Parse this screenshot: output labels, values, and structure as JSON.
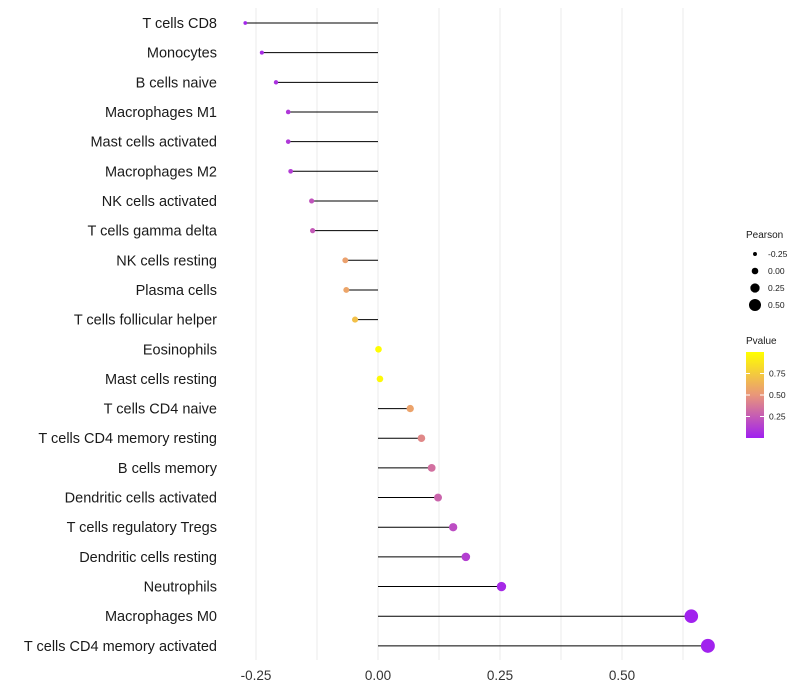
{
  "chart_data": {
    "type": "lollipop",
    "title": "",
    "xlabel": "",
    "ylabel": "",
    "xlim": [
      -0.275,
      0.69
    ],
    "x_ticks": [
      {
        "value": -0.25,
        "label": "-0.25"
      },
      {
        "value": 0.0,
        "label": "0.00"
      },
      {
        "value": 0.25,
        "label": "0.25"
      },
      {
        "value": 0.5,
        "label": "0.50"
      }
    ],
    "grid": true,
    "points": [
      {
        "category": "T cells CD8",
        "pearson": -0.272,
        "pvalue": 0.03
      },
      {
        "category": "Monocytes",
        "pearson": -0.238,
        "pvalue": 0.05
      },
      {
        "category": "B cells naive",
        "pearson": -0.209,
        "pvalue": 0.07
      },
      {
        "category": "Macrophages M1",
        "pearson": -0.184,
        "pvalue": 0.1
      },
      {
        "category": "Mast cells activated",
        "pearson": -0.184,
        "pvalue": 0.1
      },
      {
        "category": "Macrophages M2",
        "pearson": -0.179,
        "pvalue": 0.12
      },
      {
        "category": "NK cells activated",
        "pearson": -0.136,
        "pvalue": 0.22
      },
      {
        "category": "T cells gamma delta",
        "pearson": -0.134,
        "pvalue": 0.24
      },
      {
        "category": "NK cells resting",
        "pearson": -0.067,
        "pvalue": 0.55
      },
      {
        "category": "Plasma cells",
        "pearson": -0.065,
        "pvalue": 0.57
      },
      {
        "category": "T cells follicular helper",
        "pearson": -0.047,
        "pvalue": 0.7
      },
      {
        "category": "Eosinophils",
        "pearson": 0.001,
        "pvalue": 0.99
      },
      {
        "category": "Mast cells resting",
        "pearson": 0.004,
        "pvalue": 0.97
      },
      {
        "category": "T cells CD4 naive",
        "pearson": 0.066,
        "pvalue": 0.56
      },
      {
        "category": "T cells CD4 memory resting",
        "pearson": 0.089,
        "pvalue": 0.44
      },
      {
        "category": "B cells memory",
        "pearson": 0.11,
        "pvalue": 0.34
      },
      {
        "category": "Dendritic cells activated",
        "pearson": 0.123,
        "pvalue": 0.29
      },
      {
        "category": "T cells regulatory  Tregs ",
        "pearson": 0.154,
        "pvalue": 0.19
      },
      {
        "category": "Dendritic cells resting",
        "pearson": 0.18,
        "pvalue": 0.13
      },
      {
        "category": "Neutrophils",
        "pearson": 0.253,
        "pvalue": 0.04
      },
      {
        "category": "Macrophages M0",
        "pearson": 0.642,
        "pvalue": 0.01
      },
      {
        "category": "T cells CD4 memory activated",
        "pearson": 0.676,
        "pvalue": 0.01
      }
    ],
    "legend": {
      "placement": "right",
      "size": {
        "title": "Pearson",
        "entries": [
          {
            "value": -0.25,
            "label": "-0.25"
          },
          {
            "value": 0.0,
            "label": "0.00"
          },
          {
            "value": 0.25,
            "label": "0.25"
          },
          {
            "value": 0.5,
            "label": "0.50"
          }
        ]
      },
      "color": {
        "title": "Pvalue",
        "range": [
          0.0,
          1.0
        ],
        "ticks": [
          {
            "value": 0.75,
            "label": "0.75"
          },
          {
            "value": 0.5,
            "label": "0.50"
          },
          {
            "value": 0.25,
            "label": "0.25"
          }
        ],
        "low_color": "#a020f0",
        "mid_color": "#e9967a",
        "high_color": "#ffff00"
      }
    },
    "colors": {
      "stem": "#000000",
      "grid": "#ebebeb",
      "background": "#ffffff"
    }
  }
}
